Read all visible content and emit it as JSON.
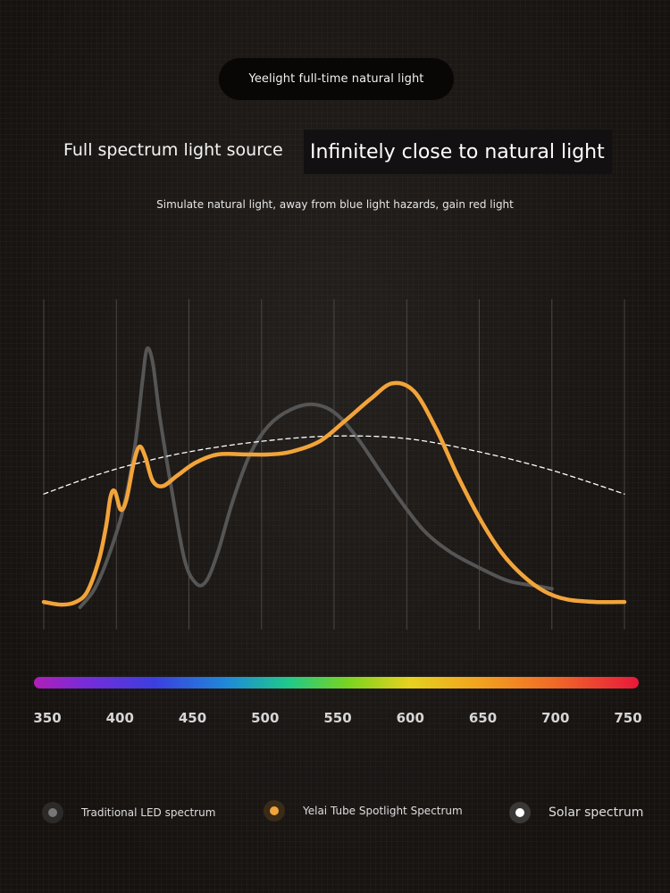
{
  "header": {
    "badge": "Yeelight full-time natural light",
    "heading_left": "Full spectrum light source",
    "heading_right": "Infinitely close to natural light",
    "subtitle": "Simulate natural light, away from blue light hazards, gain red light"
  },
  "colors": {
    "led": "#555555",
    "yelai": "#f2a43a",
    "solar": "#ffffff",
    "grid": "#4a4542"
  },
  "chart_data": {
    "type": "line",
    "x_ticks": [
      350,
      400,
      450,
      500,
      550,
      600,
      650,
      700,
      750
    ],
    "xlim": [
      350,
      750
    ],
    "ylim": [
      0,
      1
    ],
    "grid": "vertical",
    "legend_position": "bottom",
    "series": [
      {
        "name": "Traditional LED spectrum",
        "style": "solid-gray",
        "points": [
          [
            375,
            0.0
          ],
          [
            385,
            0.07
          ],
          [
            395,
            0.2
          ],
          [
            405,
            0.38
          ],
          [
            413,
            0.62
          ],
          [
            418,
            0.86
          ],
          [
            421,
            0.98
          ],
          [
            425,
            0.93
          ],
          [
            430,
            0.72
          ],
          [
            438,
            0.45
          ],
          [
            447,
            0.18
          ],
          [
            455,
            0.09
          ],
          [
            462,
            0.1
          ],
          [
            470,
            0.21
          ],
          [
            480,
            0.4
          ],
          [
            492,
            0.58
          ],
          [
            505,
            0.69
          ],
          [
            520,
            0.75
          ],
          [
            535,
            0.77
          ],
          [
            550,
            0.74
          ],
          [
            565,
            0.65
          ],
          [
            580,
            0.53
          ],
          [
            595,
            0.41
          ],
          [
            612,
            0.29
          ],
          [
            630,
            0.21
          ],
          [
            650,
            0.15
          ],
          [
            670,
            0.1
          ],
          [
            690,
            0.08
          ],
          [
            700,
            0.07
          ]
        ]
      },
      {
        "name": "Yelai Tube Spotlight Spectrum",
        "style": "solid-orange",
        "points": [
          [
            350,
            0.02
          ],
          [
            362,
            0.01
          ],
          [
            372,
            0.02
          ],
          [
            380,
            0.06
          ],
          [
            388,
            0.18
          ],
          [
            393,
            0.31
          ],
          [
            396,
            0.42
          ],
          [
            399,
            0.44
          ],
          [
            403,
            0.37
          ],
          [
            407,
            0.41
          ],
          [
            412,
            0.55
          ],
          [
            416,
            0.61
          ],
          [
            420,
            0.57
          ],
          [
            425,
            0.48
          ],
          [
            432,
            0.46
          ],
          [
            442,
            0.5
          ],
          [
            455,
            0.55
          ],
          [
            470,
            0.58
          ],
          [
            490,
            0.58
          ],
          [
            505,
            0.58
          ],
          [
            520,
            0.59
          ],
          [
            540,
            0.63
          ],
          [
            558,
            0.71
          ],
          [
            575,
            0.79
          ],
          [
            590,
            0.85
          ],
          [
            605,
            0.82
          ],
          [
            620,
            0.68
          ],
          [
            635,
            0.5
          ],
          [
            650,
            0.34
          ],
          [
            665,
            0.21
          ],
          [
            680,
            0.12
          ],
          [
            695,
            0.06
          ],
          [
            710,
            0.03
          ],
          [
            730,
            0.02
          ],
          [
            750,
            0.02
          ]
        ]
      },
      {
        "name": "Solar spectrum",
        "style": "dashed-white",
        "points": [
          [
            350,
            0.43
          ],
          [
            380,
            0.49
          ],
          [
            410,
            0.54
          ],
          [
            450,
            0.59
          ],
          [
            500,
            0.63
          ],
          [
            550,
            0.65
          ],
          [
            600,
            0.64
          ],
          [
            650,
            0.59
          ],
          [
            700,
            0.52
          ],
          [
            750,
            0.43
          ]
        ]
      }
    ]
  },
  "legend": [
    {
      "label": "Traditional LED spectrum",
      "icon": "gray-dot-icon"
    },
    {
      "label": "Yelai Tube Spotlight Spectrum",
      "icon": "orange-dot-icon"
    },
    {
      "label": "Solar spectrum",
      "icon": "white-dot-icon"
    }
  ]
}
